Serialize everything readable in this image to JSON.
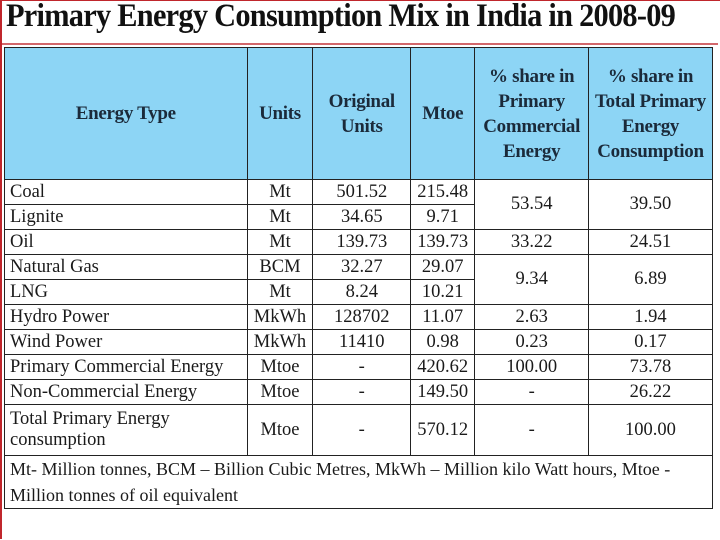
{
  "title": "Primary Energy Consumption Mix in India in 2008-09",
  "table": {
    "headers": [
      "Energy Type",
      "Units",
      "Original Units",
      "Mtoe",
      "% share in Primary Commercial Energy",
      "% share in Total Primary Energy Consumption"
    ],
    "rows": [
      {
        "type": "Coal",
        "units": "Mt",
        "original": "501.52",
        "mtoe": "215.48",
        "share_commercial": "53.54",
        "share_total": "39.50"
      },
      {
        "type": "Lignite",
        "units": "Mt",
        "original": "34.65",
        "mtoe": "9.71"
      },
      {
        "type": "Oil",
        "units": "Mt",
        "original": "139.73",
        "mtoe": "139.73",
        "share_commercial": "33.22",
        "share_total": "24.51"
      },
      {
        "type": "Natural Gas",
        "units": "BCM",
        "original": "32.27",
        "mtoe": "29.07",
        "share_commercial": "9.34",
        "share_total": "6.89"
      },
      {
        "type": "LNG",
        "units": "Mt",
        "original": "8.24",
        "mtoe": "10.21"
      },
      {
        "type": "Hydro Power",
        "units": "MkWh",
        "original": "128702",
        "mtoe": "11.07",
        "share_commercial": "2.63",
        "share_total": "1.94"
      },
      {
        "type": "Wind Power",
        "units": "MkWh",
        "original": "11410",
        "mtoe": "0.98",
        "share_commercial": "0.23",
        "share_total": "0.17"
      },
      {
        "type": "Primary Commercial Energy",
        "units": "Mtoe",
        "original": "-",
        "mtoe": "420.62",
        "share_commercial": "100.00",
        "share_total": "73.78"
      },
      {
        "type": "Non-Commercial Energy",
        "units": "Mtoe",
        "original": "-",
        "mtoe": "149.50",
        "share_commercial": "-",
        "share_total": "26.22"
      },
      {
        "type": "Total Primary Energy consumption",
        "units": "Mtoe",
        "original": "-",
        "mtoe": "570.12",
        "share_commercial": "-",
        "share_total": "100.00"
      }
    ],
    "footnote": "Mt- Million tonnes, BCM – Billion Cubic Metres, MkWh – Million kilo Watt hours, Mtoe - Million tonnes of oil equivalent"
  },
  "colors": {
    "header_bg": "#8dd5f5",
    "frame_accent": "#c0262c"
  }
}
